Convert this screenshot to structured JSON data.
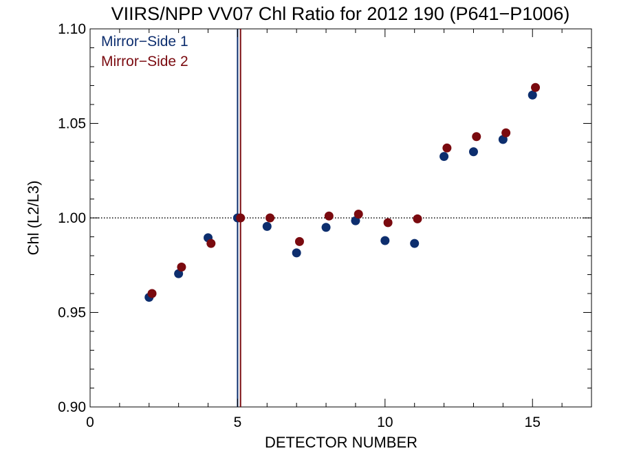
{
  "chart_data": {
    "type": "scatter",
    "title": "VIIRS/NPP VV07 Chl Ratio for 2012 190 (P641−P1006)",
    "xlabel": "DETECTOR NUMBER",
    "ylabel": "Chl (L2/L3)",
    "xlim": [
      0,
      17
    ],
    "ylim": [
      0.9,
      1.1
    ],
    "x_ticks": [
      0,
      5,
      10,
      15
    ],
    "x_tick_labels": [
      "0",
      "5",
      "10",
      "15"
    ],
    "y_ticks": [
      0.9,
      0.95,
      1.0,
      1.05,
      1.1
    ],
    "y_tick_labels": [
      "0.90",
      "0.95",
      "1.00",
      "1.05",
      "1.10"
    ],
    "reference_line": {
      "y": 1.0,
      "style": "dotted"
    },
    "grid": false,
    "legend_position": "top-left",
    "series": [
      {
        "name": "Mirror−Side 1",
        "color": "#0d2e6e",
        "x": [
          2,
          3,
          4,
          5,
          6,
          7,
          8,
          9,
          10,
          11,
          12,
          13,
          14,
          15
        ],
        "y": [
          0.958,
          0.9705,
          0.9895,
          1.0,
          0.9955,
          0.9815,
          0.995,
          0.9985,
          0.988,
          0.9865,
          1.0325,
          1.035,
          1.0415,
          1.065
        ],
        "vline": 5
      },
      {
        "name": "Mirror−Side 2",
        "color": "#7a0a0f",
        "x": [
          2.1,
          3.1,
          4.1,
          5.1,
          6.1,
          7.1,
          8.1,
          9.1,
          10.1,
          11.1,
          12.1,
          13.1,
          14.1,
          15.1
        ],
        "y": [
          0.96,
          0.974,
          0.9865,
          1.0,
          1.0,
          0.9875,
          1.001,
          1.002,
          0.9975,
          0.9995,
          1.037,
          1.043,
          1.045,
          1.069
        ],
        "vline": 5.1
      }
    ]
  }
}
